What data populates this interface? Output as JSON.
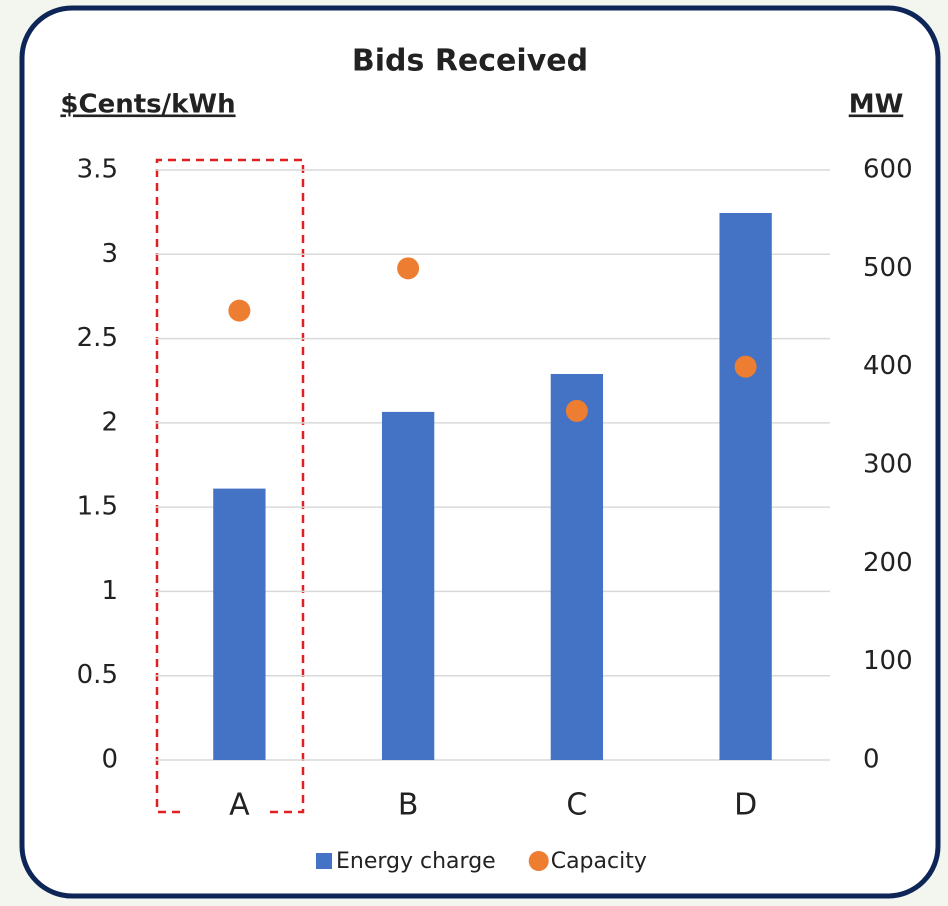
{
  "chart_data": {
    "type": "bar",
    "title": "Bids Received",
    "y_label": "$Cents/kWh",
    "y2_label": "MW",
    "categories": [
      "A",
      "B",
      "C",
      "D"
    ],
    "series": [
      {
        "name": "Energy charge",
        "type": "bar",
        "color": "#4472c4",
        "values": [
          1.61,
          2.065,
          2.29,
          3.245
        ]
      },
      {
        "name": "Capacity",
        "type": "scatter",
        "axis": "y2",
        "color": "#ed7d31",
        "values": [
          457,
          500,
          355,
          400
        ]
      }
    ],
    "ylim": [
      0,
      3.5
    ],
    "yticks": [
      0,
      0.5,
      1,
      1.5,
      2,
      2.5,
      3,
      3.5
    ],
    "y2lim": [
      0,
      600
    ],
    "y2ticks": [
      0,
      100,
      200,
      300,
      400,
      500,
      600
    ],
    "grid": true
  }
}
